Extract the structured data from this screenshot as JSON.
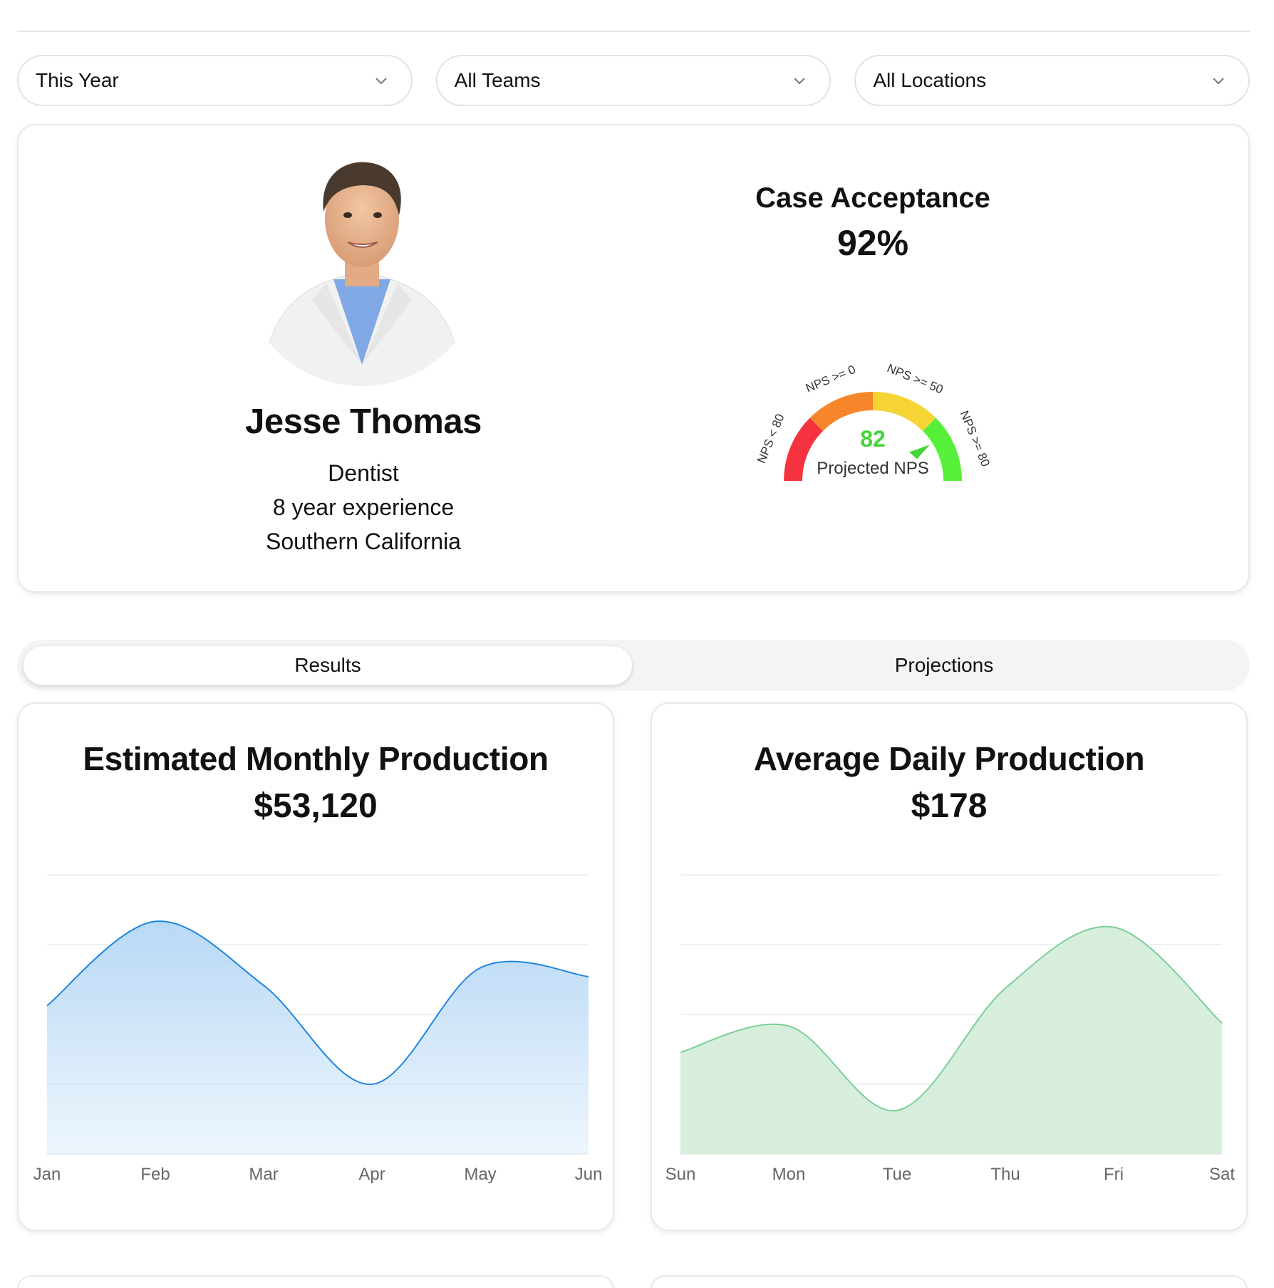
{
  "filters": [
    {
      "value": "This Year"
    },
    {
      "value": "All Teams"
    },
    {
      "value": "All Locations"
    }
  ],
  "profile": {
    "name": "Jesse Thomas",
    "role": "Dentist",
    "experience": "8 year experience",
    "location": "Southern California"
  },
  "kpi": {
    "title": "Case Acceptance",
    "value": "92%"
  },
  "gauge": {
    "value": 82,
    "value_text": "82",
    "caption": "Projected NPS",
    "segments": [
      {
        "label": "NPS < 80",
        "color": "#f5333f"
      },
      {
        "label": "NPS >= 0",
        "color": "#f7862a"
      },
      {
        "label": "NPS >= 50",
        "color": "#f5d433"
      },
      {
        "label": "NPS >= 80",
        "color": "#56f038"
      }
    ],
    "value_color": "#45d43a"
  },
  "tabs": [
    {
      "label": "Results",
      "active": true
    },
    {
      "label": "Projections",
      "active": false
    }
  ],
  "chart_data": [
    {
      "type": "area",
      "title": "Estimated Monthly Production",
      "value": "$53,120",
      "categories": [
        "Jan",
        "Feb",
        "Mar",
        "Apr",
        "May",
        "Jun"
      ],
      "values": [
        51,
        80,
        58,
        24,
        64,
        61
      ],
      "ylim": [
        0,
        96
      ],
      "grid": true,
      "color": "#1f86e0",
      "fill": "#b9d9f6"
    },
    {
      "type": "area",
      "title": "Average Daily Production",
      "value": "$178",
      "categories": [
        "Sun",
        "Mon",
        "Tue",
        "Thu",
        "Fri",
        "Sat"
      ],
      "values": [
        35,
        44,
        15,
        57,
        78,
        45
      ],
      "ylim": [
        0,
        96
      ],
      "grid": true,
      "color": "#7bcf97",
      "fill": "#d7eedd"
    }
  ]
}
